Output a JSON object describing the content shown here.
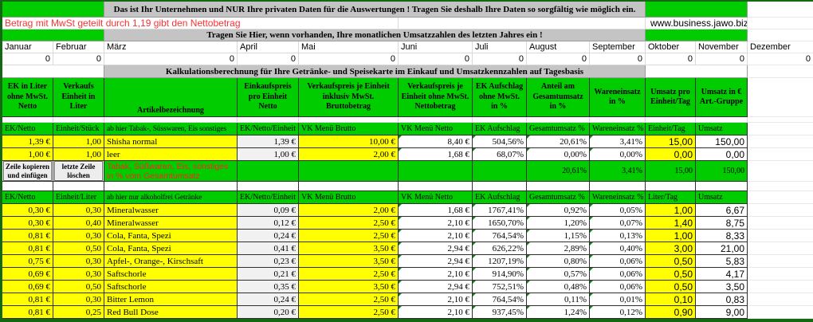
{
  "colors": {
    "green": "#00CC00",
    "yellow": "#FFFF00",
    "banner_gray": "#C4C4C4",
    "note_red": "#FF3030",
    "frame_green": "#156812"
  },
  "banners": {
    "company_note": "Das ist Ihr Unternehmen und NUR Ihre privaten Daten für die Auswertungen ! Tragen Sie deshalb Ihre Daten so sorgfältig wie möglich ein.",
    "monthly_note": "Tragen Sie Hier, wenn vorhanden, Ihre monatlichen Umsatzzahlen des letzten Jahres ein  !",
    "calc_title": "Kalkulationsberechnung für Ihre Getränke- und Speisekarte im Einkauf und Umsatzkennzahlen auf Tagesbasis"
  },
  "vat_note": "Betrag mit MwSt geteilt durch 1,19 gibt den  Nettobetrag",
  "website": "www.business.jawo.biz/",
  "months": {
    "names": [
      "Januar",
      "Februar",
      "März",
      "April",
      "Mai",
      "Juni",
      "Juli",
      "August",
      "September",
      "Oktober",
      "November",
      "Dezember"
    ],
    "values": [
      "0",
      "0",
      "0",
      "0",
      "0",
      "0",
      "0",
      "0",
      "0",
      "0",
      "0",
      "0"
    ]
  },
  "table_header": [
    "EK in Liter ohne MwSt. Netto",
    "Verkaufs Einheit in Liter",
    "Artikelbezeichnung",
    "Einkaufspreis pro Einheit Netto",
    "Verkaufspreis je Einheit inklusiv MwSt. Bruttobetrag",
    "Verkaufspreis je Einheit ohne MwSt. Nettobetrag",
    "EK Aufschlag ohne MwSt. in %",
    "Anteil am Gesamtumsatz in %",
    "Wareneinsatz in %",
    "Umsatz pro Einheit/Tag",
    "Umsatz in € Art.-Gruppe"
  ],
  "section1": {
    "subheader": [
      "EK/Netto",
      "Einheit/Stück",
      "ab hier Tabak-, Süsswaren, Eis sonstiges",
      "EK/Netto/Einheit",
      "VK Menü Brutto",
      "VK Menü Netto",
      "EK Aufschlag",
      "Gesamtumsatz %",
      "Wareneinsatz %",
      "Einheit/Tag",
      "Umsatz"
    ],
    "rows": [
      [
        "1,39 €",
        "1,00",
        "Shisha normal",
        "1,39 €",
        "10,00 €",
        "8,40 €",
        "504,56%",
        "20,61%",
        "3,41%",
        "15,00",
        "150,00"
      ],
      [
        "1,00 €",
        "1,00",
        "leer",
        "1,00 €",
        "2,00 €",
        "1,68 €",
        "68,07%",
        "0,00%",
        "0,00%",
        "0,00",
        "0,00"
      ]
    ]
  },
  "buttons": {
    "copy_row": "Zeile kopieren und einfügen",
    "delete_row": "letzte Zeile löschen"
  },
  "tabak_summary": {
    "label": "Tabak, Süßwaren, Eis, sonstiges in % vom Gesamtumsatz",
    "values": [
      "20,61%",
      "3,41%",
      "15,00",
      "150,00"
    ]
  },
  "section2": {
    "subheader": [
      "EK/Netto",
      "Einheit/Liter",
      "ab hier nur alkoholfrei Getränke",
      "EK/Netto/Einheit",
      "VK Menü Brutto",
      "VK Menü Netto",
      "EK Aufschlag",
      "Gesamtumsatz %",
      "Wareneinsatz %",
      "Liter/Tag",
      "Umsatz"
    ],
    "rows": [
      [
        "0,30 €",
        "0,30",
        "Mineralwasser",
        "0,09 €",
        "2,00 €",
        "1,68 €",
        "1767,41%",
        "0,92%",
        "0,05%",
        "1,00",
        "6,67"
      ],
      [
        "0,30 €",
        "0,40",
        "Mineralwasser",
        "0,12 €",
        "2,50 €",
        "2,10 €",
        "1650,70%",
        "1,20%",
        "0,07%",
        "1,40",
        "8,75"
      ],
      [
        "0,81 €",
        "0,30",
        "Cola, Fanta, Spezi",
        "0,24 €",
        "2,50 €",
        "2,10 €",
        "764,54%",
        "1,15%",
        "0,13%",
        "1,00",
        "8,33"
      ],
      [
        "0,81 €",
        "0,50",
        "Cola, Fanta, Spezi",
        "0,41 €",
        "3,50 €",
        "2,94 €",
        "626,22%",
        "2,89%",
        "0,40%",
        "3,00",
        "21,00"
      ],
      [
        "0,75 €",
        "0,30",
        "Apfel-, Orange-, Kirschsaft",
        "0,23 €",
        "3,50 €",
        "2,94 €",
        "1207,19%",
        "0,80%",
        "0,06%",
        "0,50",
        "5,83"
      ],
      [
        "0,69 €",
        "0,30",
        "Saftschorle",
        "0,21 €",
        "2,50 €",
        "2,10 €",
        "914,90%",
        "0,57%",
        "0,06%",
        "0,50",
        "4,17"
      ],
      [
        "0,69 €",
        "0,50",
        "Saftschorle",
        "0,35 €",
        "3,50 €",
        "2,94 €",
        "752,51%",
        "0,48%",
        "0,06%",
        "0,50",
        "3,50"
      ],
      [
        "0,81 €",
        "0,30",
        "Bitter Lemon",
        "0,24 €",
        "2,50 €",
        "2,10 €",
        "764,54%",
        "0,11%",
        "0,01%",
        "0,10",
        "0,83"
      ],
      [
        "0,81 €",
        "0,25",
        "Red Bull Dose",
        "0,20 €",
        "2,50 €",
        "2,10 €",
        "937,45%",
        "1,24%",
        "0,12%",
        "0,90",
        "9,00"
      ]
    ]
  }
}
